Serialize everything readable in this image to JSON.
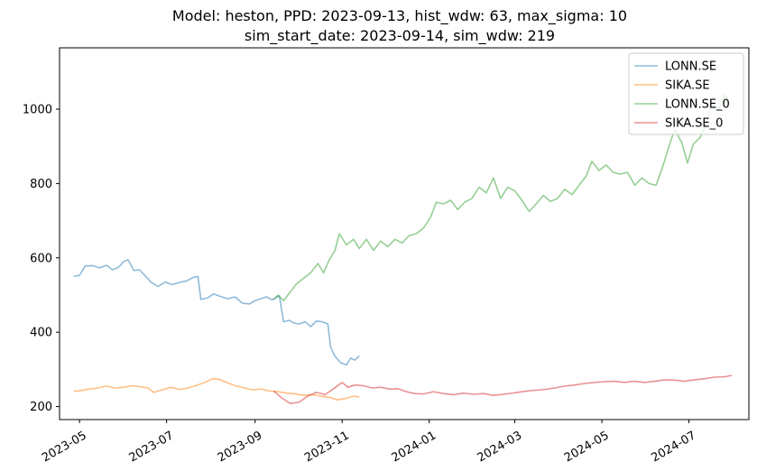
{
  "chart_data": {
    "type": "line",
    "title": "Model: heston, PPD: 2023-09-13, hist_wdw: 63, max_sigma: 10",
    "subtitle": "sim_start_date: 2023-09-14, sim_wdw: 219",
    "xlabel": "",
    "ylabel": "",
    "x_axis_type": "date",
    "xlim": [
      "2023-04-17",
      "2024-08-12"
    ],
    "ylim": [
      165,
      1165
    ],
    "grid": false,
    "legend_position": "top-right",
    "x_ticks": [
      "2023-05",
      "2023-07",
      "2023-09",
      "2023-11",
      "2024-01",
      "2024-03",
      "2024-05",
      "2024-07"
    ],
    "y_ticks": [
      200,
      400,
      600,
      800,
      1000
    ],
    "series": [
      {
        "name": "LONN.SE",
        "color": "#1f77b4",
        "points": [
          [
            "2023-04-27",
            550
          ],
          [
            "2023-05-01",
            553
          ],
          [
            "2023-05-05",
            578
          ],
          [
            "2023-05-10",
            579
          ],
          [
            "2023-05-15",
            573
          ],
          [
            "2023-05-20",
            580
          ],
          [
            "2023-05-24",
            568
          ],
          [
            "2023-05-28",
            574
          ],
          [
            "2023-06-01",
            590
          ],
          [
            "2023-06-04",
            595
          ],
          [
            "2023-06-08",
            566
          ],
          [
            "2023-06-12",
            568
          ],
          [
            "2023-06-15",
            556
          ],
          [
            "2023-06-20",
            535
          ],
          [
            "2023-06-25",
            523
          ],
          [
            "2023-06-30",
            535
          ],
          [
            "2023-07-05",
            528
          ],
          [
            "2023-07-10",
            534
          ],
          [
            "2023-07-15",
            538
          ],
          [
            "2023-07-20",
            548
          ],
          [
            "2023-07-23",
            550
          ],
          [
            "2023-07-25",
            488
          ],
          [
            "2023-07-30",
            493
          ],
          [
            "2023-08-03",
            503
          ],
          [
            "2023-08-08",
            496
          ],
          [
            "2023-08-13",
            490
          ],
          [
            "2023-08-18",
            495
          ],
          [
            "2023-08-23",
            478
          ],
          [
            "2023-08-28",
            476
          ],
          [
            "2023-09-01",
            485
          ],
          [
            "2023-09-05",
            490
          ],
          [
            "2023-09-09",
            495
          ],
          [
            "2023-09-13",
            487
          ],
          [
            "2023-09-15",
            492
          ],
          [
            "2023-09-18",
            498
          ],
          [
            "2023-09-21",
            428
          ],
          [
            "2023-09-25",
            432
          ],
          [
            "2023-09-28",
            425
          ],
          [
            "2023-10-02",
            422
          ],
          [
            "2023-10-06",
            428
          ],
          [
            "2023-10-10",
            415
          ],
          [
            "2023-10-14",
            430
          ],
          [
            "2023-10-18",
            428
          ],
          [
            "2023-10-22",
            422
          ],
          [
            "2023-10-24",
            360
          ],
          [
            "2023-10-27",
            335
          ],
          [
            "2023-10-31",
            318
          ],
          [
            "2023-11-04",
            312
          ],
          [
            "2023-11-07",
            330
          ],
          [
            "2023-11-10",
            325
          ],
          [
            "2023-11-13",
            336
          ]
        ]
      },
      {
        "name": "SIKA.SE",
        "color": "#ff7f0e",
        "points": [
          [
            "2023-04-27",
            241
          ],
          [
            "2023-05-02",
            243
          ],
          [
            "2023-05-08",
            247
          ],
          [
            "2023-05-14",
            250
          ],
          [
            "2023-05-20",
            255
          ],
          [
            "2023-05-26",
            250
          ],
          [
            "2023-06-01",
            252
          ],
          [
            "2023-06-07",
            256
          ],
          [
            "2023-06-13",
            253
          ],
          [
            "2023-06-18",
            250
          ],
          [
            "2023-06-22",
            238
          ],
          [
            "2023-06-28",
            245
          ],
          [
            "2023-07-04",
            252
          ],
          [
            "2023-07-10",
            246
          ],
          [
            "2023-07-16",
            250
          ],
          [
            "2023-07-22",
            257
          ],
          [
            "2023-07-28",
            265
          ],
          [
            "2023-08-02",
            275
          ],
          [
            "2023-08-07",
            273
          ],
          [
            "2023-08-12",
            265
          ],
          [
            "2023-08-18",
            256
          ],
          [
            "2023-08-24",
            251
          ],
          [
            "2023-08-30",
            245
          ],
          [
            "2023-09-05",
            247
          ],
          [
            "2023-09-11",
            242
          ],
          [
            "2023-09-17",
            240
          ],
          [
            "2023-09-23",
            236
          ],
          [
            "2023-09-29",
            234
          ],
          [
            "2023-10-05",
            230
          ],
          [
            "2023-10-11",
            232
          ],
          [
            "2023-10-17",
            228
          ],
          [
            "2023-10-23",
            225
          ],
          [
            "2023-10-29",
            218
          ],
          [
            "2023-11-04",
            222
          ],
          [
            "2023-11-09",
            228
          ],
          [
            "2023-11-13",
            226
          ]
        ]
      },
      {
        "name": "LONN.SE_0",
        "color": "#2ca02c",
        "points": [
          [
            "2023-09-14",
            487
          ],
          [
            "2023-09-17",
            500
          ],
          [
            "2023-09-21",
            485
          ],
          [
            "2023-09-25",
            505
          ],
          [
            "2023-09-30",
            530
          ],
          [
            "2023-10-05",
            545
          ],
          [
            "2023-10-10",
            560
          ],
          [
            "2023-10-15",
            585
          ],
          [
            "2023-10-19",
            560
          ],
          [
            "2023-10-23",
            595
          ],
          [
            "2023-10-27",
            620
          ],
          [
            "2023-10-30",
            665
          ],
          [
            "2023-11-04",
            635
          ],
          [
            "2023-11-09",
            650
          ],
          [
            "2023-11-13",
            625
          ],
          [
            "2023-11-18",
            650
          ],
          [
            "2023-11-23",
            620
          ],
          [
            "2023-11-28",
            645
          ],
          [
            "2023-12-03",
            630
          ],
          [
            "2023-12-08",
            650
          ],
          [
            "2023-12-13",
            640
          ],
          [
            "2023-12-18",
            660
          ],
          [
            "2023-12-23",
            665
          ],
          [
            "2023-12-28",
            680
          ],
          [
            "2024-01-02",
            710
          ],
          [
            "2024-01-06",
            750
          ],
          [
            "2024-01-11",
            745
          ],
          [
            "2024-01-16",
            755
          ],
          [
            "2024-01-21",
            730
          ],
          [
            "2024-01-26",
            750
          ],
          [
            "2024-01-31",
            760
          ],
          [
            "2024-02-05",
            790
          ],
          [
            "2024-02-10",
            775
          ],
          [
            "2024-02-15",
            815
          ],
          [
            "2024-02-20",
            760
          ],
          [
            "2024-02-25",
            790
          ],
          [
            "2024-03-01",
            780
          ],
          [
            "2024-03-06",
            755
          ],
          [
            "2024-03-11",
            725
          ],
          [
            "2024-03-16",
            745
          ],
          [
            "2024-03-21",
            768
          ],
          [
            "2024-03-26",
            752
          ],
          [
            "2024-03-31",
            760
          ],
          [
            "2024-04-05",
            785
          ],
          [
            "2024-04-10",
            770
          ],
          [
            "2024-04-15",
            795
          ],
          [
            "2024-04-20",
            820
          ],
          [
            "2024-04-24",
            860
          ],
          [
            "2024-04-29",
            835
          ],
          [
            "2024-05-04",
            850
          ],
          [
            "2024-05-09",
            830
          ],
          [
            "2024-05-14",
            825
          ],
          [
            "2024-05-19",
            830
          ],
          [
            "2024-05-24",
            795
          ],
          [
            "2024-05-29",
            815
          ],
          [
            "2024-06-03",
            800
          ],
          [
            "2024-06-08",
            795
          ],
          [
            "2024-06-13",
            850
          ],
          [
            "2024-06-17",
            900
          ],
          [
            "2024-06-21",
            945
          ],
          [
            "2024-06-26",
            910
          ],
          [
            "2024-06-30",
            855
          ],
          [
            "2024-07-04",
            905
          ],
          [
            "2024-07-09",
            925
          ],
          [
            "2024-07-13",
            960
          ],
          [
            "2024-07-17",
            1015
          ],
          [
            "2024-07-22",
            1000
          ],
          [
            "2024-07-26",
            1040
          ],
          [
            "2024-07-30",
            1010
          ]
        ]
      },
      {
        "name": "SIKA.SE_0",
        "color": "#d62728",
        "points": [
          [
            "2023-09-14",
            242
          ],
          [
            "2023-09-20",
            222
          ],
          [
            "2023-09-26",
            208
          ],
          [
            "2023-10-02",
            212
          ],
          [
            "2023-10-08",
            228
          ],
          [
            "2023-10-14",
            238
          ],
          [
            "2023-10-20",
            232
          ],
          [
            "2023-10-26",
            248
          ],
          [
            "2023-11-01",
            265
          ],
          [
            "2023-11-05",
            252
          ],
          [
            "2023-11-10",
            258
          ],
          [
            "2023-11-16",
            256
          ],
          [
            "2023-11-22",
            250
          ],
          [
            "2023-11-28",
            252
          ],
          [
            "2023-12-04",
            247
          ],
          [
            "2023-12-10",
            248
          ],
          [
            "2023-12-16",
            240
          ],
          [
            "2023-12-22",
            235
          ],
          [
            "2023-12-28",
            234
          ],
          [
            "2024-01-04",
            240
          ],
          [
            "2024-01-11",
            235
          ],
          [
            "2024-01-18",
            232
          ],
          [
            "2024-01-25",
            236
          ],
          [
            "2024-02-01",
            233
          ],
          [
            "2024-02-08",
            235
          ],
          [
            "2024-02-15",
            230
          ],
          [
            "2024-02-22",
            233
          ],
          [
            "2024-03-01",
            237
          ],
          [
            "2024-03-08",
            241
          ],
          [
            "2024-03-15",
            244
          ],
          [
            "2024-03-22",
            246
          ],
          [
            "2024-03-29",
            250
          ],
          [
            "2024-04-05",
            255
          ],
          [
            "2024-04-12",
            258
          ],
          [
            "2024-04-19",
            262
          ],
          [
            "2024-04-26",
            265
          ],
          [
            "2024-05-03",
            267
          ],
          [
            "2024-05-10",
            268
          ],
          [
            "2024-05-17",
            265
          ],
          [
            "2024-05-24",
            268
          ],
          [
            "2024-05-31",
            265
          ],
          [
            "2024-06-07",
            268
          ],
          [
            "2024-06-14",
            272
          ],
          [
            "2024-06-21",
            271
          ],
          [
            "2024-06-28",
            268
          ],
          [
            "2024-07-05",
            272
          ],
          [
            "2024-07-12",
            275
          ],
          [
            "2024-07-19",
            279
          ],
          [
            "2024-07-26",
            280
          ],
          [
            "2024-07-31",
            284
          ]
        ]
      }
    ]
  }
}
